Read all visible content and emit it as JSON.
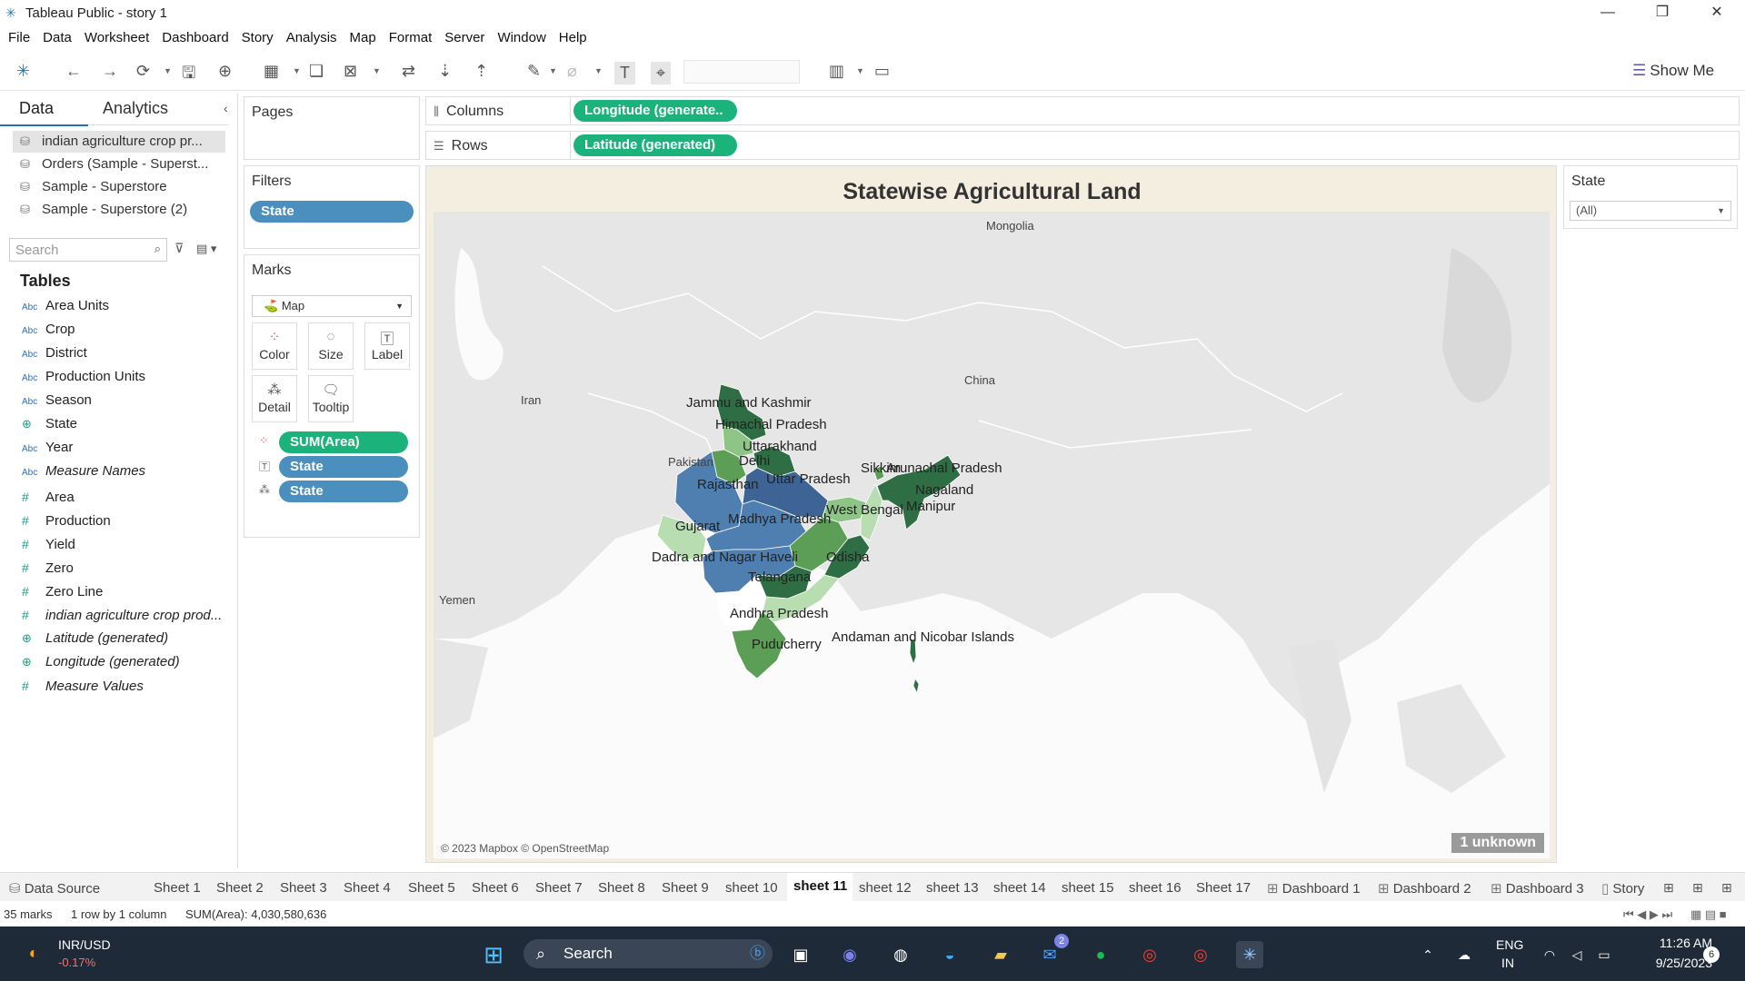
{
  "window": {
    "title": "Tableau Public - story 1"
  },
  "menu": [
    "File",
    "Data",
    "Worksheet",
    "Dashboard",
    "Story",
    "Analysis",
    "Map",
    "Format",
    "Server",
    "Window",
    "Help"
  ],
  "toolbar": {
    "show_me": "Show Me"
  },
  "left_panel": {
    "tabs": [
      "Data",
      "Analytics"
    ],
    "datasources": [
      "indian agriculture crop pr...",
      "Orders (Sample - Superst...",
      "Sample - Superstore",
      "Sample - Superstore (2)"
    ],
    "search_placeholder": "Search",
    "tables_label": "Tables",
    "dimensions": [
      {
        "name": "Area Units",
        "type": "Abc"
      },
      {
        "name": "Crop",
        "type": "Abc"
      },
      {
        "name": "District",
        "type": "Abc"
      },
      {
        "name": "Production Units",
        "type": "Abc"
      },
      {
        "name": "Season",
        "type": "Abc"
      },
      {
        "name": "State",
        "type": "geo"
      },
      {
        "name": "Year",
        "type": "Abc"
      },
      {
        "name": "Measure Names",
        "type": "Abc"
      }
    ],
    "measures": [
      {
        "name": "Area"
      },
      {
        "name": "Production"
      },
      {
        "name": "Yield"
      },
      {
        "name": "Zero"
      },
      {
        "name": "Zero Line"
      },
      {
        "name": "indian agriculture crop prod..."
      },
      {
        "name": "Latitude (generated)"
      },
      {
        "name": "Longitude (generated)"
      },
      {
        "name": "Measure Values"
      }
    ]
  },
  "pages": {
    "label": "Pages"
  },
  "filters": {
    "label": "Filters",
    "pill": "State"
  },
  "marks": {
    "label": "Marks",
    "type": "Map",
    "buttons": [
      "Color",
      "Size",
      "Label",
      "Detail",
      "Tooltip"
    ],
    "pills": [
      "SUM(Area)",
      "State",
      "State"
    ]
  },
  "shelves": {
    "columns_label": "Columns",
    "columns_pill": "Longitude (generate..",
    "rows_label": "Rows",
    "rows_pill": "Latitude (generated)"
  },
  "sheet": {
    "title": "Statewise Agricultural Land",
    "attribution": "© 2023 Mapbox © OpenStreetMap",
    "unknown": "1 unknown",
    "map_labels": [
      "Mongolia",
      "China",
      "Iran",
      "Pakistan",
      "Yemen"
    ],
    "state_labels": [
      "Jammu and Kashmir",
      "Himachal Pradesh",
      "Uttarakhand",
      "Delhi",
      "Rajasthan",
      "Uttar Pradesh",
      "Sikkim",
      "Arunachal Pradesh",
      "Nagaland",
      "Manipur",
      "West Bengal",
      "Madhya Pradesh",
      "Gujarat",
      "Dadra and Nagar Haveli",
      "Odisha",
      "Telangana",
      "Andhra Pradesh",
      "Puducherry",
      "Andaman and Nicobar Islands"
    ],
    "colors": {
      "dark_green": "#2f6e45",
      "mid_green": "#5c9e55",
      "light_green": "#b8ddb0",
      "blue": "#4f7eb0",
      "dark_blue": "#3d6494"
    }
  },
  "state_filter": {
    "label": "State",
    "value": "(All)"
  },
  "tabs": {
    "data_source": "Data Source",
    "sheets": [
      "Sheet 1",
      "Sheet 2",
      "Sheet 3",
      "Sheet 4",
      "Sheet 5",
      "Sheet 6",
      "Sheet 7",
      "Sheet 8",
      "Sheet 9",
      "sheet 10",
      "sheet 11",
      "sheet 12",
      "sheet 13",
      "sheet 14",
      "sheet 15",
      "sheet 16",
      "Sheet 17"
    ],
    "dashboards": [
      "Dashboard 1",
      "Dashboard 2",
      "Dashboard 3"
    ],
    "story": "Story",
    "active": "sheet 11"
  },
  "status": {
    "marks": "35 marks",
    "rows": "1 row by 1 column",
    "sum": "SUM(Area): 4,030,580,636"
  },
  "taskbar": {
    "ticker": "INR/USD",
    "ticker_change": "-0.17%",
    "search": "Search",
    "lang": "ENG",
    "region": "IN",
    "time": "11:26 AM",
    "date": "9/25/2023",
    "notif_count": "6",
    "mail_badge": "2"
  }
}
